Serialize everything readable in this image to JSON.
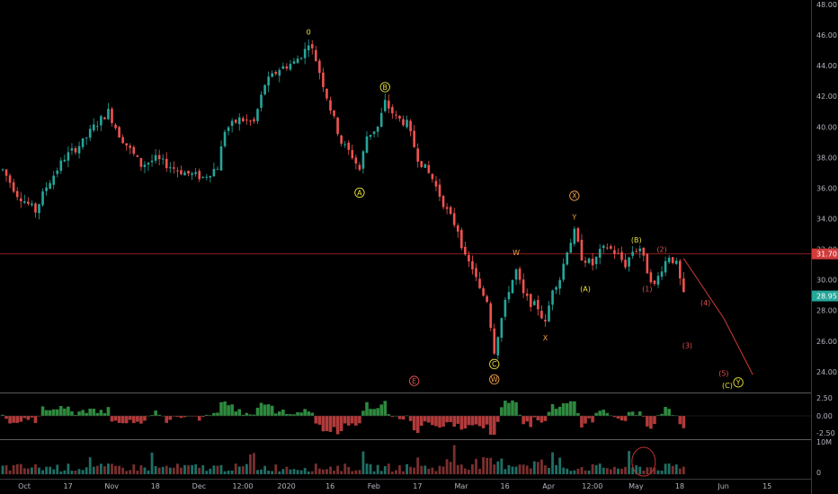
{
  "chart_data": {
    "type": "candlestick",
    "title": "",
    "price_axis": {
      "min": 22.7,
      "max": 48.0,
      "ticks": [
        "48.00",
        "46.00",
        "44.00",
        "42.00",
        "40.00",
        "38.00",
        "36.00",
        "34.00",
        "32.00",
        "30.00",
        "28.00",
        "26.00",
        "24.00"
      ]
    },
    "x_axis": {
      "labels": [
        "Oct",
        "17",
        "Nov",
        "18",
        "Dec",
        "12:00",
        "2020",
        "16",
        "Feb",
        "17",
        "Mar",
        "16",
        "Apr",
        "12:00",
        "May",
        "18",
        "Jun",
        "15"
      ],
      "session_index": [
        0,
        12,
        24,
        36,
        48,
        60,
        72,
        84,
        96,
        108,
        120,
        132,
        144,
        156,
        168,
        180,
        192,
        204
      ]
    },
    "price_series": [
      [
        0,
        37.2
      ],
      [
        4,
        35.6
      ],
      [
        9,
        34.5
      ],
      [
        12,
        36.1
      ],
      [
        17,
        38.0
      ],
      [
        22,
        39.0
      ],
      [
        25,
        40.0
      ],
      [
        29,
        41.0
      ],
      [
        32,
        39.5
      ],
      [
        35,
        38.5
      ],
      [
        38,
        37.5
      ],
      [
        42,
        37.9
      ],
      [
        47,
        37.3
      ],
      [
        50,
        37.0
      ],
      [
        55,
        36.7
      ],
      [
        59,
        37.4
      ],
      [
        61,
        39.8
      ],
      [
        65,
        40.5
      ],
      [
        69,
        40.3
      ],
      [
        72,
        42.8
      ],
      [
        76,
        43.8
      ],
      [
        80,
        44.2
      ],
      [
        83,
        45.0
      ],
      [
        84,
        45.6
      ],
      [
        86,
        44.4
      ],
      [
        90,
        41.2
      ],
      [
        93,
        39.0
      ],
      [
        96,
        38.1
      ],
      [
        98,
        37.2
      ],
      [
        100,
        39.4
      ],
      [
        103,
        40.0
      ],
      [
        105,
        41.6
      ],
      [
        108,
        40.6
      ],
      [
        111,
        40.2
      ],
      [
        114,
        38.0
      ],
      [
        118,
        36.6
      ],
      [
        122,
        34.5
      ],
      [
        125,
        33.3
      ],
      [
        127,
        31.4
      ],
      [
        129,
        30.8
      ],
      [
        131,
        29.3
      ],
      [
        133,
        28.7
      ],
      [
        135,
        25.4
      ],
      [
        137,
        27.5
      ],
      [
        139,
        29.4
      ],
      [
        141,
        30.6
      ],
      [
        143,
        29.0
      ],
      [
        145,
        28.5
      ],
      [
        147,
        28.2
      ],
      [
        149,
        27.1
      ],
      [
        151,
        29.5
      ],
      [
        153,
        30.1
      ],
      [
        155,
        32.0
      ],
      [
        157,
        33.1
      ],
      [
        159,
        31.5
      ],
      [
        162,
        31.0
      ],
      [
        164,
        31.8
      ],
      [
        166,
        32.2
      ],
      [
        169,
        31.6
      ],
      [
        171,
        31.0
      ],
      [
        173,
        31.9
      ],
      [
        175,
        32.1
      ],
      [
        177,
        30.6
      ],
      [
        179,
        29.6
      ],
      [
        181,
        30.8
      ],
      [
        183,
        31.6
      ],
      [
        185,
        31.0
      ],
      [
        187,
        28.95
      ]
    ],
    "projection": [
      [
        187,
        31.4
      ],
      [
        198,
        27.5
      ],
      [
        206,
        23.8
      ]
    ],
    "last_price": "28.95",
    "horizontal_line": {
      "value": 31.7,
      "label": "31.70"
    },
    "wave_labels": [
      {
        "text": "0",
        "i": 84,
        "v": 46.2,
        "color": "#e8e03a",
        "circle": false
      },
      {
        "text": "B",
        "i": 105,
        "v": 42.6,
        "color": "#e8e03a",
        "circle": true
      },
      {
        "text": "A",
        "i": 98,
        "v": 35.7,
        "color": "#e8e03a",
        "circle": true
      },
      {
        "text": "X",
        "i": 157,
        "v": 35.5,
        "color": "#f0a048",
        "circle": true
      },
      {
        "text": "Y",
        "i": 157,
        "v": 34.1,
        "color": "#f0a048",
        "circle": false
      },
      {
        "text": "W",
        "i": 141,
        "v": 31.8,
        "color": "#f0a048",
        "circle": false
      },
      {
        "text": "X",
        "i": 149,
        "v": 26.2,
        "color": "#f0a048",
        "circle": false
      },
      {
        "text": "C",
        "i": 135,
        "v": 24.5,
        "color": "#e8e03a",
        "circle": true
      },
      {
        "text": "W",
        "i": 135,
        "v": 23.5,
        "color": "#f0a048",
        "circle": true
      },
      {
        "text": "(A)",
        "i": 160,
        "v": 29.4,
        "color": "#e8e03a",
        "circle": false
      },
      {
        "text": "(B)",
        "i": 174,
        "v": 32.6,
        "color": "#e8e03a",
        "circle": false
      },
      {
        "text": "(2)",
        "i": 181,
        "v": 32.0,
        "color": "#e05050",
        "circle": false
      },
      {
        "text": "(1)",
        "i": 177,
        "v": 29.4,
        "color": "#e05050",
        "circle": false
      },
      {
        "text": "(4)",
        "i": 193,
        "v": 28.5,
        "color": "#e05050",
        "circle": false
      },
      {
        "text": "(3)",
        "i": 188,
        "v": 25.7,
        "color": "#e05050",
        "circle": false
      },
      {
        "text": "(5)",
        "i": 198,
        "v": 23.9,
        "color": "#e05050",
        "circle": false
      },
      {
        "text": "(C)",
        "i": 199,
        "v": 23.1,
        "color": "#e8e03a",
        "circle": false
      },
      {
        "text": "Y",
        "i": 202,
        "v": 23.3,
        "color": "#e8e03a",
        "circle": true
      },
      {
        "text": "E",
        "i": 113,
        "v": 23.4,
        "color": "#e05050",
        "circle": true
      }
    ],
    "oscillator_axis": {
      "ticks": [
        "2.50",
        "0.00",
        "-2.50"
      ]
    },
    "volume_axis": {
      "ticks": [
        "10M",
        "0"
      ]
    }
  },
  "colors": {
    "up": "#26a69a",
    "down": "#ef5350",
    "grid": "#1c1c1c",
    "axis_text": "#b2b5be"
  }
}
